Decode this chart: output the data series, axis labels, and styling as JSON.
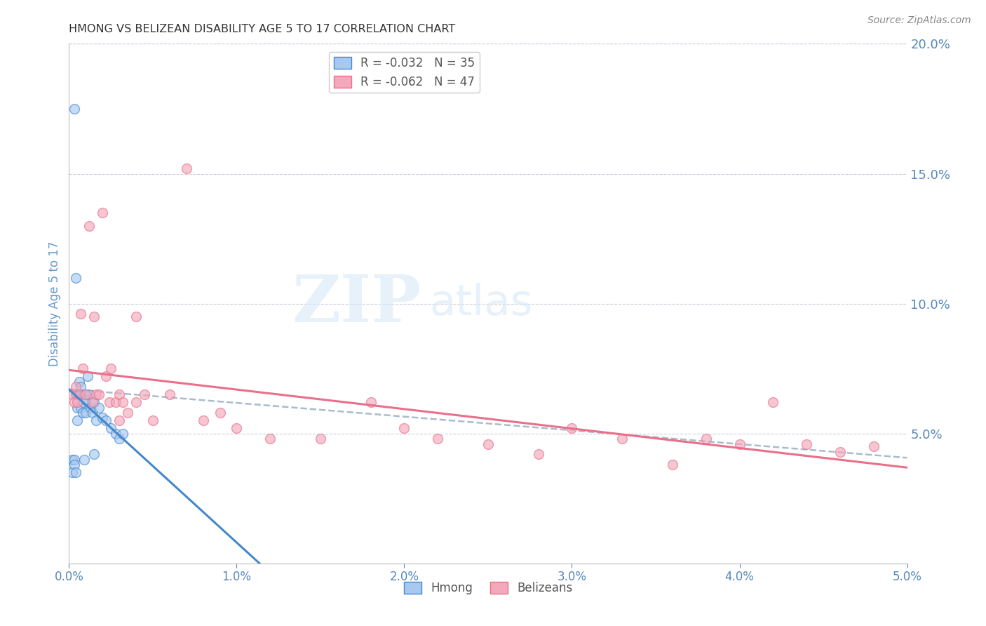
{
  "title": "HMONG VS BELIZEAN DISABILITY AGE 5 TO 17 CORRELATION CHART",
  "source": "Source: ZipAtlas.com",
  "ylabel": "Disability Age 5 to 17",
  "xlim": [
    0.0,
    0.05
  ],
  "ylim": [
    0.0,
    0.2
  ],
  "xticks": [
    0.0,
    0.01,
    0.02,
    0.03,
    0.04,
    0.05
  ],
  "xtick_labels": [
    "0.0%",
    "1.0%",
    "2.0%",
    "3.0%",
    "4.0%",
    "5.0%"
  ],
  "yticks_right": [
    0.05,
    0.1,
    0.15,
    0.2
  ],
  "ytick_right_labels": [
    "5.0%",
    "10.0%",
    "15.0%",
    "20.0%"
  ],
  "hmong_R": -0.032,
  "hmong_N": 35,
  "belizean_R": -0.062,
  "belizean_N": 47,
  "hmong_color": "#A8C8F0",
  "belizean_color": "#F4A8BC",
  "hmong_line_color": "#4488CC",
  "belizean_line_color": "#E8708A",
  "dashed_line_color": "#AABBCC",
  "axis_label_color": "#6699CC",
  "tick_label_color": "#5588BB",
  "grid_color": "#CCCCDD",
  "background_color": "#FFFFFF",
  "watermark_zip": "ZIP",
  "watermark_atlas": "atlas",
  "hmong_x": [
    0.0002,
    0.0003,
    0.0003,
    0.0004,
    0.0004,
    0.0005,
    0.0005,
    0.0005,
    0.0006,
    0.0006,
    0.0007,
    0.0007,
    0.0008,
    0.0008,
    0.0009,
    0.001,
    0.001,
    0.0011,
    0.0012,
    0.0013,
    0.0014,
    0.0015,
    0.0016,
    0.0018,
    0.002,
    0.0022,
    0.0025,
    0.0028,
    0.003,
    0.0032,
    0.0002,
    0.0003,
    0.0004,
    0.0009,
    0.0015
  ],
  "hmong_y": [
    0.04,
    0.04,
    0.175,
    0.11,
    0.065,
    0.065,
    0.06,
    0.055,
    0.07,
    0.065,
    0.068,
    0.06,
    0.062,
    0.058,
    0.065,
    0.063,
    0.058,
    0.072,
    0.065,
    0.06,
    0.058,
    0.062,
    0.055,
    0.06,
    0.056,
    0.055,
    0.052,
    0.05,
    0.048,
    0.05,
    0.035,
    0.038,
    0.035,
    0.04,
    0.042
  ],
  "belizean_x": [
    0.0002,
    0.0003,
    0.0004,
    0.0005,
    0.0006,
    0.0007,
    0.0008,
    0.001,
    0.0012,
    0.0014,
    0.0015,
    0.0016,
    0.0018,
    0.002,
    0.0022,
    0.0024,
    0.0025,
    0.0028,
    0.003,
    0.003,
    0.0032,
    0.0035,
    0.004,
    0.004,
    0.0045,
    0.005,
    0.006,
    0.007,
    0.008,
    0.009,
    0.01,
    0.012,
    0.015,
    0.018,
    0.02,
    0.022,
    0.025,
    0.028,
    0.03,
    0.033,
    0.036,
    0.038,
    0.04,
    0.042,
    0.044,
    0.046,
    0.048
  ],
  "belizean_y": [
    0.065,
    0.062,
    0.068,
    0.062,
    0.065,
    0.096,
    0.075,
    0.065,
    0.13,
    0.062,
    0.095,
    0.065,
    0.065,
    0.135,
    0.072,
    0.062,
    0.075,
    0.062,
    0.065,
    0.055,
    0.062,
    0.058,
    0.095,
    0.062,
    0.065,
    0.055,
    0.065,
    0.152,
    0.055,
    0.058,
    0.052,
    0.048,
    0.048,
    0.062,
    0.052,
    0.048,
    0.046,
    0.042,
    0.052,
    0.048,
    0.038,
    0.048,
    0.046,
    0.062,
    0.046,
    0.043,
    0.045
  ]
}
